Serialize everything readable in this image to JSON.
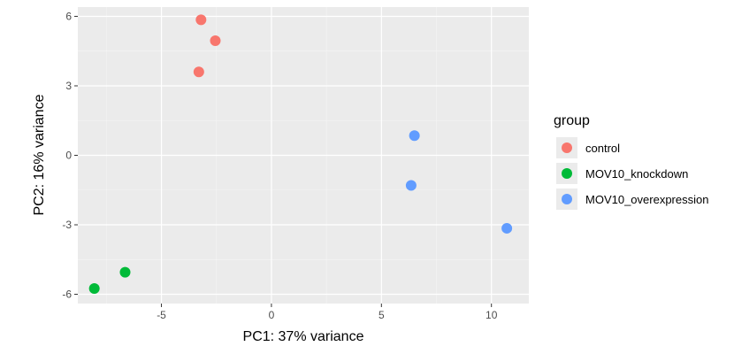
{
  "chart_data": {
    "type": "scatter",
    "xlabel": "PC1: 37% variance",
    "ylabel": "PC2: 16% variance",
    "xlim": [
      -8.8,
      11.7
    ],
    "ylim": [
      -6.4,
      6.4
    ],
    "x_ticks": [
      -5,
      0,
      5,
      10
    ],
    "y_ticks": [
      -6,
      -3,
      0,
      3,
      6
    ],
    "x_tick_labels": [
      "-5",
      "0",
      "5",
      "10"
    ],
    "y_tick_labels": [
      "-6",
      "-3",
      "0",
      "3",
      "6"
    ],
    "grid": true,
    "legend": {
      "title": "group",
      "placement": "right"
    },
    "series": [
      {
        "name": "control",
        "color": "#F8766D",
        "points": [
          {
            "x": -3.2,
            "y": 5.85
          },
          {
            "x": -2.55,
            "y": 4.95
          },
          {
            "x": -3.3,
            "y": 3.6
          }
        ]
      },
      {
        "name": "MOV10_knockdown",
        "color": "#00BA38",
        "points": [
          {
            "x": -6.65,
            "y": -5.05
          },
          {
            "x": -8.05,
            "y": -5.75
          }
        ]
      },
      {
        "name": "MOV10_overexpression",
        "color": "#619CFF",
        "points": [
          {
            "x": 6.5,
            "y": 0.85
          },
          {
            "x": 6.35,
            "y": -1.3
          },
          {
            "x": 10.7,
            "y": -3.15
          }
        ]
      }
    ]
  }
}
